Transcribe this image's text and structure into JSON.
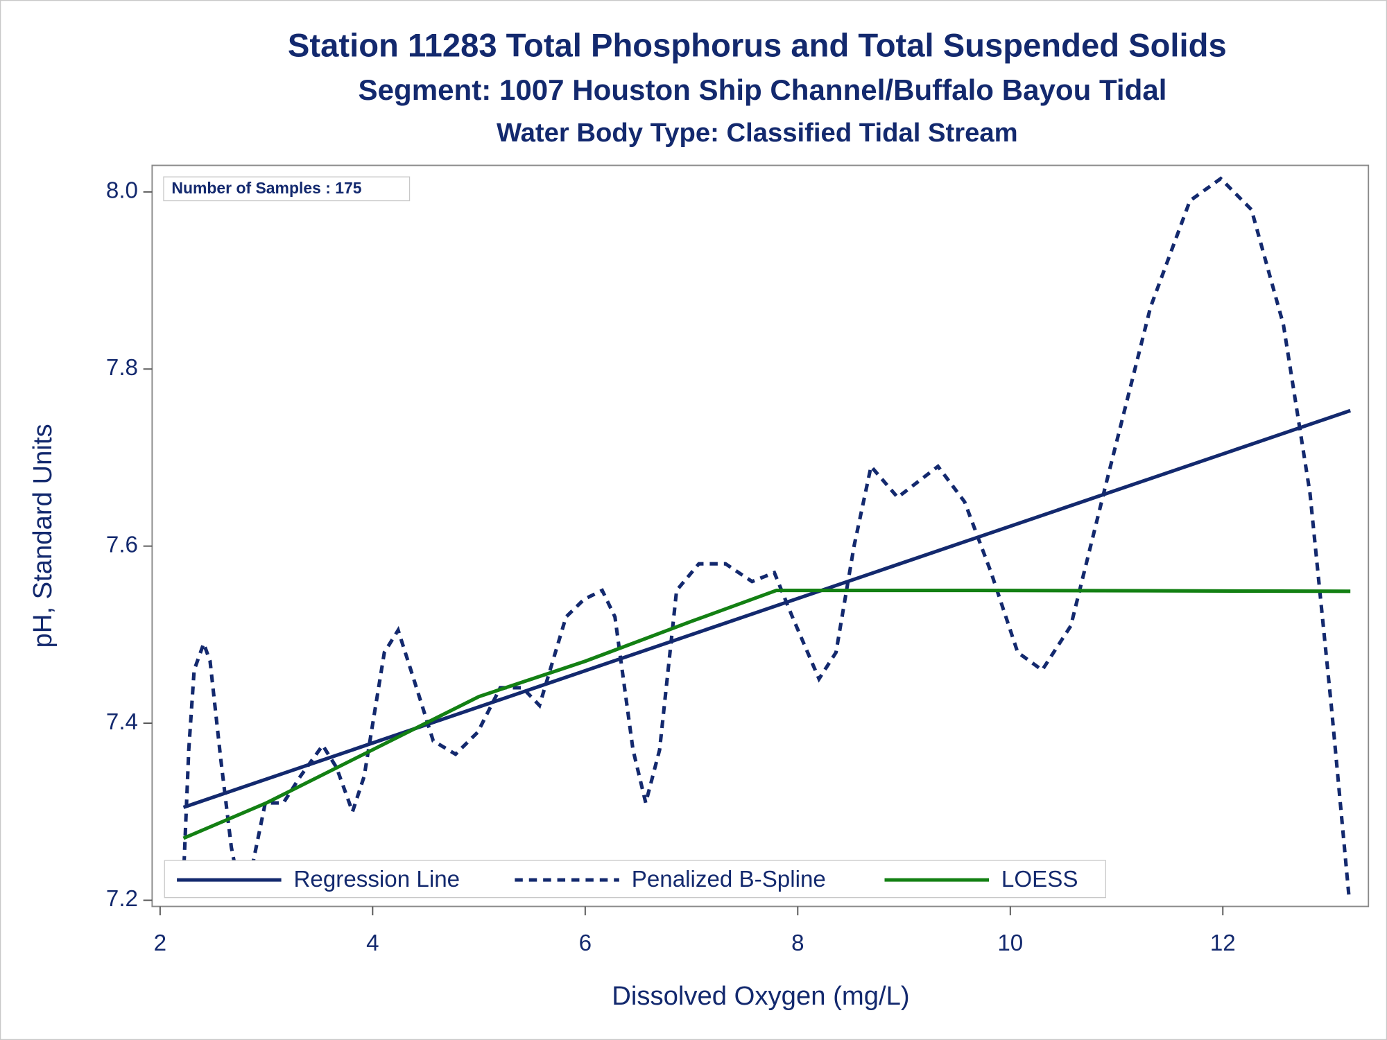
{
  "chart_data": {
    "type": "line",
    "title": "Station 11283  Total Phosphorus and Total Suspended Solids",
    "subtitle": "Segment: 1007  Houston Ship Channel/Buffalo Bayou Tidal",
    "subtitle2": "Water Body Type: Classified Tidal Stream",
    "annotation": "Number of Samples : 175",
    "x_label": "Dissolved Oxygen (mg/L)",
    "y_label": "pH, Standard Units",
    "xlim": [
      1.925,
      13.37
    ],
    "ylim": [
      7.193,
      8.03
    ],
    "xticks": [
      2,
      4,
      6,
      8,
      10,
      12
    ],
    "yticks": [
      {
        "value": 7.2,
        "label": "7.2"
      },
      {
        "value": 7.4,
        "label": "7.4"
      },
      {
        "value": 7.6,
        "label": "7.6"
      },
      {
        "value": 7.8,
        "label": "7.8"
      },
      {
        "value": 8.0,
        "label": "8.0"
      }
    ],
    "legend": "bottom-left",
    "series": [
      {
        "name": "Regression Line",
        "color": "#13296e",
        "line_style": "solid",
        "x": [
          2.22,
          13.2
        ],
        "values": [
          7.305,
          7.753
        ]
      },
      {
        "name": "Penalized B-Spline",
        "color": "#13296e",
        "line_style": "dashed",
        "x": [
          2.22,
          2.27,
          2.32,
          2.41,
          2.47,
          2.57,
          2.67,
          2.76,
          2.87,
          2.99,
          3.16,
          3.32,
          3.53,
          3.66,
          3.81,
          3.92,
          4.11,
          4.24,
          4.36,
          4.57,
          4.78,
          4.99,
          5.2,
          5.41,
          5.57,
          5.82,
          5.99,
          6.16,
          6.28,
          6.45,
          6.57,
          6.7,
          6.86,
          7.07,
          7.32,
          7.57,
          7.78,
          7.95,
          8.2,
          8.36,
          8.53,
          8.69,
          8.94,
          9.32,
          9.57,
          9.82,
          10.07,
          10.3,
          10.57,
          10.9,
          11.32,
          11.69,
          11.98,
          12.27,
          12.57,
          12.82,
          13.02,
          13.19
        ],
        "values": [
          7.225,
          7.37,
          7.46,
          7.49,
          7.47,
          7.36,
          7.26,
          7.205,
          7.24,
          7.31,
          7.31,
          7.34,
          7.375,
          7.35,
          7.3,
          7.34,
          7.48,
          7.505,
          7.46,
          7.38,
          7.365,
          7.39,
          7.44,
          7.44,
          7.42,
          7.52,
          7.54,
          7.55,
          7.52,
          7.37,
          7.31,
          7.37,
          7.55,
          7.58,
          7.58,
          7.56,
          7.57,
          7.52,
          7.45,
          7.48,
          7.6,
          7.69,
          7.655,
          7.69,
          7.65,
          7.57,
          7.48,
          7.46,
          7.51,
          7.67,
          7.87,
          7.99,
          8.015,
          7.98,
          7.85,
          7.66,
          7.42,
          7.2
        ]
      },
      {
        "name": "LOESS",
        "color": "#138013",
        "line_style": "solid",
        "x": [
          2.22,
          3,
          4,
          5,
          6,
          7,
          7.8,
          9.7,
          13.2
        ],
        "values": [
          7.27,
          7.31,
          7.37,
          7.43,
          7.47,
          7.515,
          7.55,
          7.55,
          7.549
        ]
      }
    ]
  }
}
